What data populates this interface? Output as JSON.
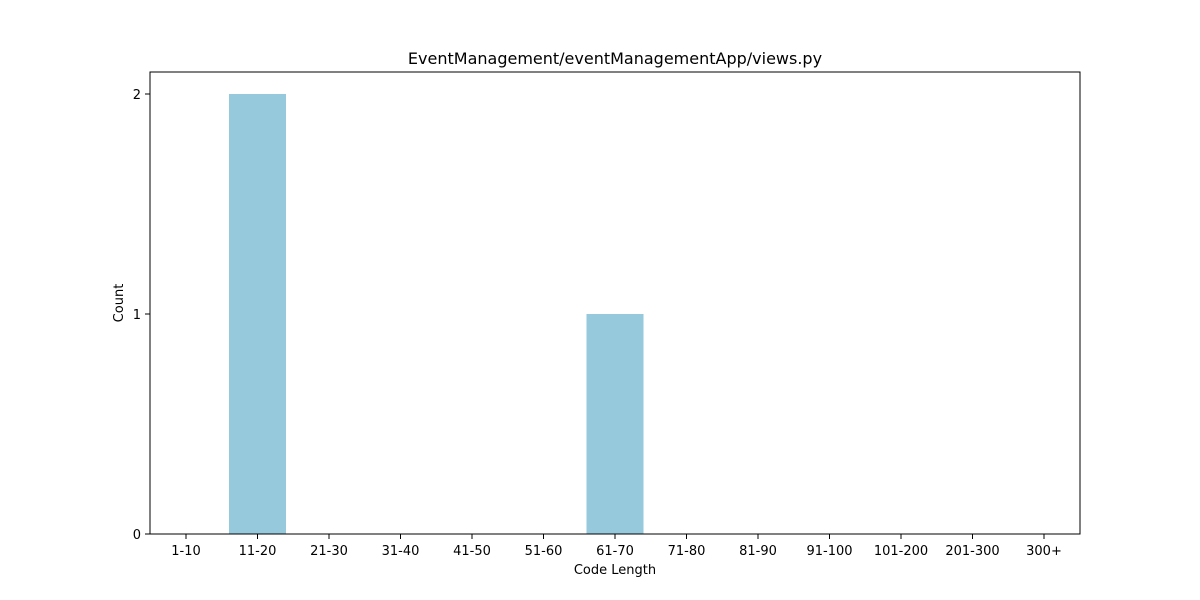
{
  "chart_data": {
    "type": "bar",
    "title": "EventManagement/eventManagementApp/views.py",
    "xlabel": "Code Length",
    "ylabel": "Count",
    "categories": [
      "1-10",
      "11-20",
      "21-30",
      "31-40",
      "41-50",
      "51-60",
      "61-70",
      "71-80",
      "81-90",
      "91-100",
      "101-200",
      "201-300",
      "300+"
    ],
    "values": [
      0,
      2,
      0,
      0,
      0,
      0,
      1,
      0,
      0,
      0,
      0,
      0,
      0
    ],
    "ylim": [
      0,
      2.1
    ],
    "yticks": [
      0,
      1,
      2
    ],
    "bar_color": "#96c9dc",
    "grid": false,
    "legend": "none"
  }
}
